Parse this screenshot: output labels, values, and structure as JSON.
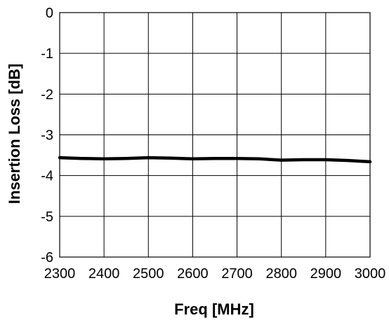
{
  "chart_data": {
    "type": "line",
    "title": "",
    "xlabel": "Freq [MHz]",
    "ylabel": "Insertion Loss [dB]",
    "xlim": [
      2300,
      3000
    ],
    "ylim": [
      -6,
      0
    ],
    "x_ticks": [
      2300,
      2400,
      2500,
      2600,
      2700,
      2800,
      2900,
      3000
    ],
    "y_ticks": [
      0,
      -1,
      -2,
      -3,
      -4,
      -5,
      -6
    ],
    "grid": true,
    "legend": "none",
    "series": [
      {
        "color": "#000000",
        "x": [
          2300,
          2350,
          2400,
          2450,
          2500,
          2550,
          2600,
          2650,
          2700,
          2750,
          2800,
          2850,
          2900,
          2950,
          3000
        ],
        "y": [
          -3.56,
          -3.58,
          -3.59,
          -3.58,
          -3.56,
          -3.57,
          -3.59,
          -3.58,
          -3.58,
          -3.59,
          -3.62,
          -3.61,
          -3.61,
          -3.63,
          -3.66
        ]
      }
    ]
  }
}
